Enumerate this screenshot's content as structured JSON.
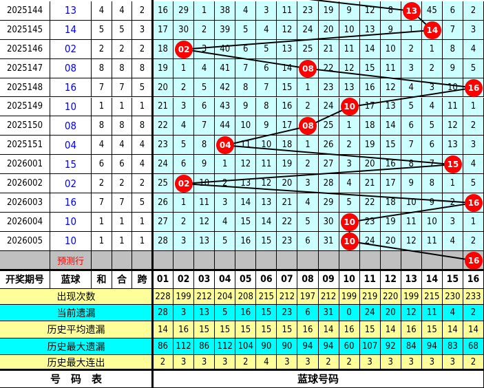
{
  "colors": {
    "ball": "#ff0000",
    "cell_bg": "#ccffff",
    "predict_bg": "#c0c0c0",
    "stat_yellow": "#ffff99",
    "stat_cyan": "#00ffff",
    "blue_text": "#0000ff"
  },
  "rows": [
    {
      "issue": "2025144",
      "blue": "13",
      "sum": "4",
      "mod": "4",
      "span": "2",
      "cells": [
        "16",
        "29",
        "1",
        "38",
        "4",
        "3",
        "11",
        "23",
        "19",
        "9",
        "12",
        "8",
        "13",
        "45",
        "6",
        "2"
      ]
    },
    {
      "issue": "2025145",
      "blue": "14",
      "sum": "5",
      "mod": "5",
      "span": "3",
      "cells": [
        "17",
        "30",
        "2",
        "39",
        "5",
        "4",
        "12",
        "24",
        "20",
        "10",
        "13",
        "9",
        "1",
        "14",
        "7",
        "3"
      ]
    },
    {
      "issue": "2025146",
      "blue": "02",
      "sum": "2",
      "mod": "2",
      "span": "2",
      "cells": [
        "18",
        "02",
        "3",
        "40",
        "6",
        "5",
        "13",
        "25",
        "21",
        "11",
        "14",
        "10",
        "2",
        "1",
        "8",
        "4"
      ]
    },
    {
      "issue": "2025147",
      "blue": "08",
      "sum": "8",
      "mod": "8",
      "span": "8",
      "cells": [
        "19",
        "1",
        "4",
        "41",
        "7",
        "6",
        "14",
        "08",
        "22",
        "12",
        "15",
        "11",
        "3",
        "2",
        "9",
        "5"
      ]
    },
    {
      "issue": "2025148",
      "blue": "16",
      "sum": "7",
      "mod": "7",
      "span": "5",
      "cells": [
        "20",
        "2",
        "5",
        "42",
        "8",
        "7",
        "15",
        "1",
        "23",
        "13",
        "16",
        "12",
        "4",
        "3",
        "10",
        "16"
      ]
    },
    {
      "issue": "2025149",
      "blue": "10",
      "sum": "1",
      "mod": "1",
      "span": "1",
      "cells": [
        "21",
        "3",
        "6",
        "43",
        "9",
        "8",
        "16",
        "2",
        "24",
        "10",
        "17",
        "13",
        "5",
        "4",
        "11",
        "1"
      ]
    },
    {
      "issue": "2025150",
      "blue": "08",
      "sum": "8",
      "mod": "8",
      "span": "8",
      "cells": [
        "22",
        "4",
        "7",
        "44",
        "10",
        "9",
        "17",
        "08",
        "25",
        "1",
        "18",
        "14",
        "6",
        "5",
        "12",
        "2"
      ]
    },
    {
      "issue": "2025151",
      "blue": "04",
      "sum": "4",
      "mod": "4",
      "span": "4",
      "cells": [
        "23",
        "5",
        "8",
        "04",
        "11",
        "10",
        "18",
        "1",
        "26",
        "2",
        "19",
        "15",
        "7",
        "6",
        "13",
        "3"
      ]
    },
    {
      "issue": "2026001",
      "blue": "15",
      "sum": "6",
      "mod": "6",
      "span": "4",
      "cells": [
        "24",
        "6",
        "9",
        "1",
        "12",
        "11",
        "19",
        "2",
        "27",
        "3",
        "20",
        "16",
        "8",
        "7",
        "15",
        "4"
      ]
    },
    {
      "issue": "2026002",
      "blue": "02",
      "sum": "2",
      "mod": "2",
      "span": "2",
      "cells": [
        "25",
        "02",
        "10",
        "2",
        "13",
        "12",
        "20",
        "3",
        "28",
        "4",
        "21",
        "17",
        "9",
        "8",
        "1",
        "5"
      ]
    },
    {
      "issue": "2026003",
      "blue": "16",
      "sum": "7",
      "mod": "7",
      "span": "5",
      "cells": [
        "26",
        "1",
        "11",
        "3",
        "14",
        "13",
        "21",
        "4",
        "29",
        "5",
        "22",
        "18",
        "10",
        "9",
        "2",
        "16"
      ]
    },
    {
      "issue": "2026004",
      "blue": "10",
      "sum": "1",
      "mod": "1",
      "span": "1",
      "cells": [
        "27",
        "2",
        "12",
        "4",
        "15",
        "14",
        "22",
        "5",
        "30",
        "10",
        "23",
        "19",
        "11",
        "10",
        "3",
        "1"
      ]
    },
    {
      "issue": "2026005",
      "blue": "10",
      "sum": "1",
      "mod": "1",
      "span": "1",
      "cells": [
        "28",
        "3",
        "13",
        "5",
        "16",
        "15",
        "23",
        "6",
        "31",
        "10",
        "24",
        "20",
        "12",
        "11",
        "4",
        "2"
      ]
    }
  ],
  "predict": {
    "label": "预测行",
    "ball": "16"
  },
  "header": {
    "issue": "开奖期号",
    "blue": "蓝球",
    "sum": "和",
    "mod": "合",
    "span": "跨",
    "numbers": [
      "01",
      "02",
      "03",
      "04",
      "05",
      "06",
      "07",
      "08",
      "09",
      "10",
      "11",
      "12",
      "13",
      "14",
      "15",
      "16"
    ]
  },
  "stats": [
    {
      "label": "出现次数",
      "values": [
        "228",
        "199",
        "212",
        "204",
        "208",
        "215",
        "212",
        "197",
        "212",
        "199",
        "219",
        "220",
        "199",
        "215",
        "230",
        "233"
      ]
    },
    {
      "label": "当前遗漏",
      "values": [
        "28",
        "3",
        "13",
        "5",
        "16",
        "15",
        "23",
        "6",
        "31",
        "0",
        "24",
        "20",
        "12",
        "11",
        "4",
        "2"
      ]
    },
    {
      "label": "历史平均遗漏",
      "values": [
        "14",
        "16",
        "15",
        "15",
        "15",
        "15",
        "15",
        "16",
        "14",
        "16",
        "15",
        "14",
        "16",
        "15",
        "14",
        "14"
      ]
    },
    {
      "label": "历史最大遗漏",
      "values": [
        "86",
        "112",
        "86",
        "112",
        "104",
        "90",
        "90",
        "94",
        "94",
        "60",
        "107",
        "92",
        "84",
        "94",
        "83",
        "68"
      ]
    },
    {
      "label": "历史最大连出",
      "values": [
        "2",
        "3",
        "3",
        "3",
        "2",
        "4",
        "3",
        "3",
        "2",
        "2",
        "3",
        "3",
        "3",
        "3",
        "3",
        "2"
      ]
    }
  ],
  "footer": {
    "left": "号　码　表",
    "right": "蓝球号码"
  }
}
